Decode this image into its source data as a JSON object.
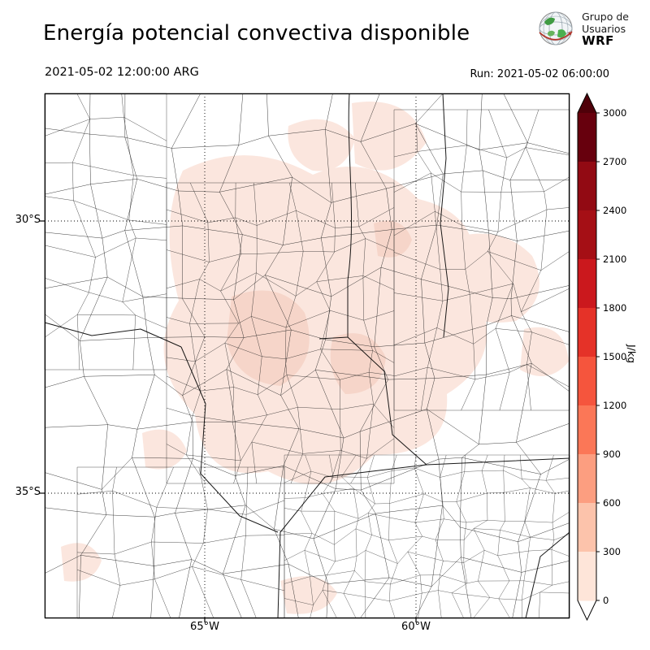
{
  "header": {
    "title": "Energía potencial convectiva disponible",
    "valid_time": "2021-05-02 12:00:00 ARG",
    "run_label": "Run: 2021-05-02 06:00:00",
    "logo": {
      "line1": "Grupo de",
      "line2": "Usuarios",
      "line3": "WRF"
    }
  },
  "map_axes": {
    "lat_ticks": [
      "30°S",
      "35°S"
    ],
    "lon_ticks": [
      "65°W",
      "60°W"
    ]
  },
  "map_colors": {
    "background": "#ffffff",
    "boundary": "#000000",
    "shade_light": "#fbe6de",
    "shade_mid": "#f6d5c9"
  },
  "colorbar": {
    "label": "J/kg",
    "ticks_top_to_bottom": [
      "3000",
      "2700",
      "2400",
      "2100",
      "1800",
      "1500",
      "1200",
      "900",
      "600",
      "300",
      "0"
    ],
    "segment_colors_top_to_bottom": [
      "#67000d",
      "#920a13",
      "#a50f15",
      "#cb181d",
      "#e53228",
      "#f5553d",
      "#fb7757",
      "#fc9e80",
      "#fcc3ab",
      "#fee5d9"
    ],
    "arrow_top_color": "#4f0009",
    "arrow_bottom_color": "#ffffff"
  },
  "chart_data": {
    "type": "heatmap",
    "title": "Energía potencial convectiva disponible",
    "variable_units": "J/kg",
    "valid_time": "2021-05-02 12:00:00 ARG",
    "model_run": "Run: 2021-05-02 06:00:00",
    "contour_levels": [
      0,
      300,
      600,
      900,
      1200,
      1500,
      1800,
      2100,
      2400,
      2700,
      3000
    ],
    "colormap": "Reds",
    "colorbar_extend": "both",
    "x_ticks": [
      "65°W",
      "60°W"
    ],
    "y_ticks": [
      "30°S",
      "35°S"
    ],
    "grid": "lat-lon dotted graticule on",
    "legend_position": "right vertical colorbar",
    "approx_field_note": "Approximate CAPE (J/kg) sampled on a 6x6 grid over the plotted domain; rows north to south, columns west to east",
    "approx_field_values": [
      [
        0,
        100,
        150,
        150,
        100,
        50
      ],
      [
        0,
        150,
        250,
        250,
        200,
        150
      ],
      [
        50,
        200,
        300,
        250,
        250,
        150
      ],
      [
        0,
        150,
        250,
        200,
        150,
        100
      ],
      [
        0,
        50,
        150,
        100,
        50,
        0
      ],
      [
        0,
        0,
        50,
        0,
        0,
        0
      ]
    ]
  }
}
